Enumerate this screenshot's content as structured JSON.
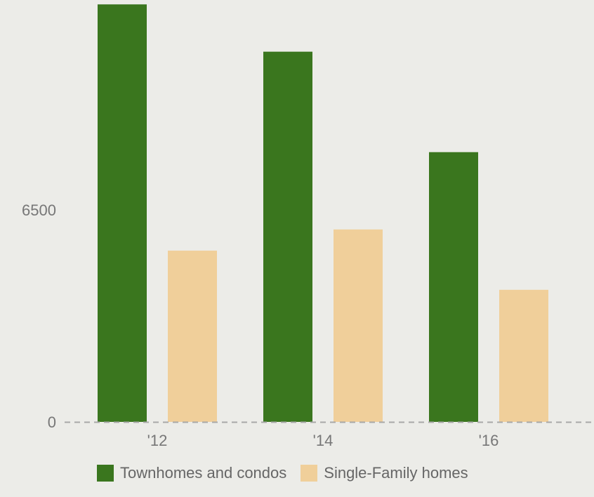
{
  "chart_data": {
    "type": "bar",
    "categories": [
      "'12",
      "'14",
      "'16"
    ],
    "series": [
      {
        "name": "Townhomes and condos",
        "color": "#3a761e",
        "values": [
          12800,
          11350,
          8270
        ]
      },
      {
        "name": "Single-Family homes",
        "color": "#f0cf9a",
        "values": [
          5250,
          5900,
          4050
        ]
      }
    ],
    "y_ticks": [
      {
        "value": 0,
        "label": "0"
      },
      {
        "value": 6500,
        "label": "6500"
      }
    ],
    "ylim": [
      0,
      12870
    ],
    "baseline_style": "dashed",
    "legend_position": "bottom"
  }
}
